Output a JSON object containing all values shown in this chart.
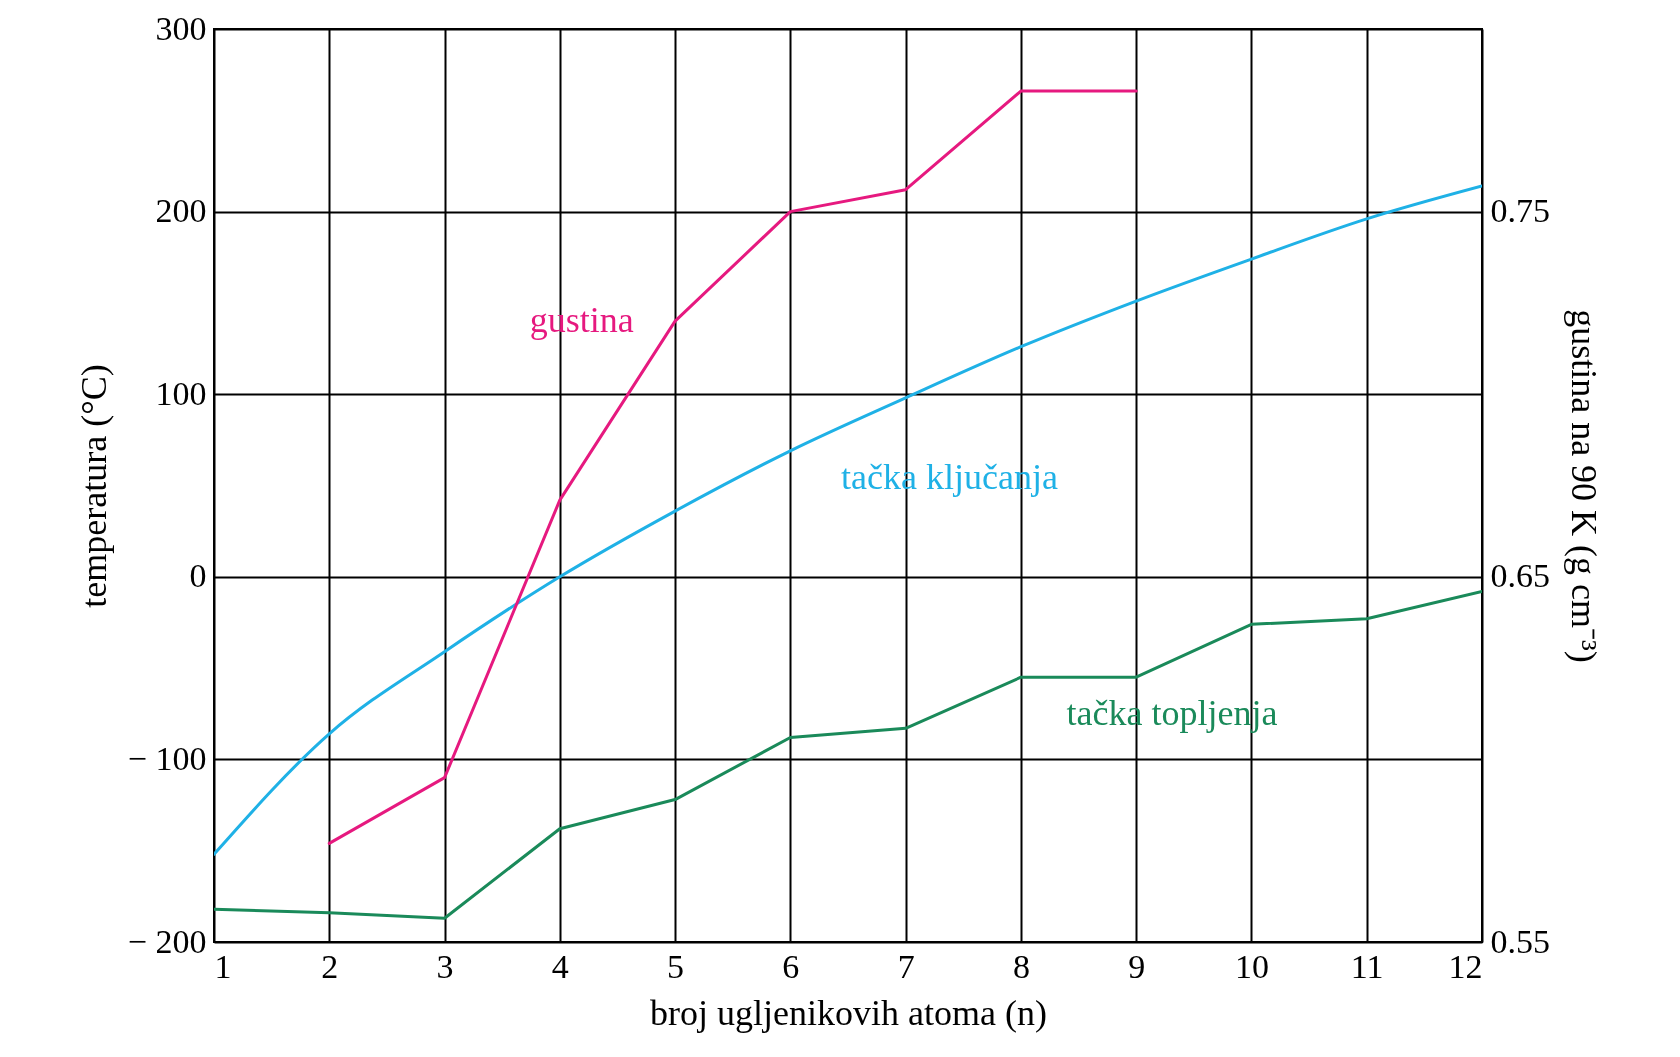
{
  "chart_data": {
    "type": "line",
    "xlabel": "broj ugljenikovih atoma (n)",
    "ylabel": "temperatura (°C)",
    "y2label": "gustina na 90 K (g cm⁻³)",
    "x": [
      1,
      2,
      3,
      4,
      5,
      6,
      7,
      8,
      9,
      10,
      11,
      12
    ],
    "series": [
      {
        "name": "gustina",
        "color": "#e6197f",
        "axis": "y2",
        "values": [
          null,
          0.577,
          0.595,
          0.671,
          0.72,
          0.75,
          0.756,
          0.783,
          0.783,
          null,
          null,
          null
        ]
      },
      {
        "name": "tačka ključanja",
        "color": "#1fb1e6",
        "values": [
          -152,
          -86,
          -41,
          0,
          36,
          69,
          98,
          126,
          151,
          174,
          196,
          214
        ]
      },
      {
        "name": "tačka topljenja",
        "color": "#1a8a5a",
        "values": [
          -182,
          -184,
          -187,
          -138,
          -122,
          -88,
          -83,
          -55,
          -55,
          -26,
          -23,
          -8
        ]
      }
    ],
    "xlim": [
      1,
      12
    ],
    "xticks": [
      1,
      2,
      3,
      4,
      5,
      6,
      7,
      8,
      9,
      10,
      11,
      12
    ],
    "ylim": [
      -200,
      300
    ],
    "yticks": [
      {
        "value": -200,
        "label": "− 200"
      },
      {
        "value": -100,
        "label": "− 100"
      },
      0,
      100,
      200,
      300
    ],
    "y2lim": [
      0.55,
      0.8
    ],
    "y2ticks": [
      0.55,
      0.65,
      0.75
    ],
    "grid": true,
    "legend": false,
    "marker": "none",
    "line_style": "solid"
  }
}
